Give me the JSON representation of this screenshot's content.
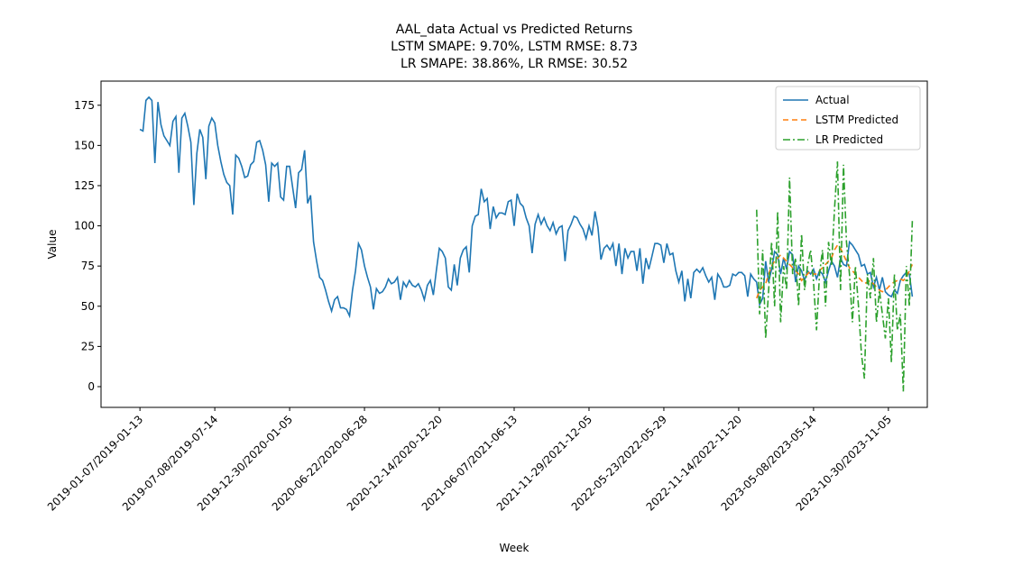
{
  "chart_data": {
    "type": "line",
    "title": [
      "AAL_data Actual vs Predicted Returns",
      "LSTM SMAPE: 9.70%, LSTM RMSE: 8.73",
      "LR SMAPE: 38.86%, LR RMSE: 30.52"
    ],
    "x_label": "Week",
    "y_label": "Value",
    "categories": [
      "2019-01-07/2019-01-13",
      null,
      null,
      null,
      null,
      null,
      null,
      null,
      null,
      null,
      null,
      null,
      null,
      null,
      null,
      null,
      null,
      null,
      null,
      null,
      null,
      null,
      null,
      null,
      null,
      "2019-07-08/2019-07-14",
      null,
      null,
      null,
      null,
      null,
      null,
      null,
      null,
      null,
      null,
      null,
      null,
      null,
      null,
      null,
      null,
      null,
      null,
      null,
      null,
      null,
      null,
      null,
      null,
      "2019-12-30/2020-01-05",
      null,
      null,
      null,
      null,
      null,
      null,
      null,
      null,
      null,
      null,
      null,
      null,
      null,
      null,
      null,
      null,
      null,
      null,
      null,
      null,
      null,
      null,
      null,
      null,
      "2020-06-22/2020-06-28",
      null,
      null,
      null,
      null,
      null,
      null,
      null,
      null,
      null,
      null,
      null,
      null,
      null,
      null,
      null,
      null,
      null,
      null,
      null,
      null,
      null,
      null,
      null,
      null,
      "2020-12-14/2020-12-20",
      null,
      null,
      null,
      null,
      null,
      null,
      null,
      null,
      null,
      null,
      null,
      null,
      null,
      null,
      null,
      null,
      null,
      null,
      null,
      null,
      null,
      null,
      null,
      null,
      "2021-06-07/2021-06-13",
      null,
      null,
      null,
      null,
      null,
      null,
      null,
      null,
      null,
      null,
      null,
      null,
      null,
      null,
      null,
      null,
      null,
      null,
      null,
      null,
      null,
      null,
      null,
      null,
      "2021-11-29/2021-12-05",
      null,
      null,
      null,
      null,
      null,
      null,
      null,
      null,
      null,
      null,
      null,
      null,
      null,
      null,
      null,
      null,
      null,
      null,
      null,
      null,
      null,
      null,
      null,
      null,
      "2022-05-23/2022-05-29",
      null,
      null,
      null,
      null,
      null,
      null,
      null,
      null,
      null,
      null,
      null,
      null,
      null,
      null,
      null,
      null,
      null,
      null,
      null,
      null,
      null,
      null,
      null,
      null,
      "2022-11-14/2022-11-20",
      null,
      null,
      null,
      null,
      null,
      null,
      null,
      null,
      null,
      null,
      null,
      null,
      null,
      null,
      null,
      null,
      null,
      null,
      null,
      null,
      null,
      null,
      null,
      null,
      "2023-05-08/2023-05-14",
      null,
      null,
      null,
      null,
      null,
      null,
      null,
      null,
      null,
      null,
      null,
      null,
      null,
      null,
      null,
      null,
      null,
      null,
      null,
      null,
      null,
      null,
      null,
      null,
      "2023-10-30/2023-11-05",
      null,
      null,
      null,
      null,
      null,
      null,
      null,
      null
    ],
    "series": [
      {
        "name": "Actual",
        "color": "#1f77b4",
        "dash": "none",
        "values": [
          160,
          159,
          178,
          180,
          178,
          139,
          177,
          163,
          156,
          153,
          150,
          165,
          168,
          133,
          167,
          170,
          162,
          152,
          113,
          145,
          160,
          155,
          129,
          162,
          167,
          164,
          150,
          140,
          132,
          127,
          125,
          107,
          144,
          142,
          137,
          130,
          131,
          138,
          140,
          152,
          153,
          147,
          138,
          115,
          139,
          137,
          139,
          118,
          116,
          137,
          137,
          124,
          111,
          133,
          135,
          147,
          114,
          119,
          90,
          78,
          68,
          66,
          60,
          53,
          47,
          54,
          56,
          49,
          49,
          48,
          44,
          60,
          72,
          89,
          85,
          75,
          68,
          62,
          48,
          61,
          58,
          59,
          62,
          67,
          64,
          65,
          68,
          54,
          65,
          62,
          66,
          63,
          62,
          64,
          60,
          54,
          63,
          66,
          57,
          72,
          86,
          84,
          80,
          62,
          60,
          76,
          63,
          80,
          85,
          87,
          71,
          100,
          106,
          107,
          123,
          115,
          117,
          98,
          112,
          105,
          108,
          108,
          107,
          115,
          116,
          100,
          120,
          114,
          112,
          105,
          100,
          83,
          101,
          107,
          101,
          105,
          100,
          97,
          102,
          95,
          99,
          100,
          78,
          97,
          101,
          106,
          105,
          101,
          98,
          92,
          100,
          94,
          109,
          99,
          79,
          86,
          88,
          85,
          89,
          75,
          89,
          70,
          86,
          80,
          84,
          84,
          72,
          86,
          64,
          80,
          73,
          81,
          89,
          89,
          88,
          77,
          89,
          82,
          83,
          72,
          65,
          72,
          53,
          67,
          55,
          71,
          73,
          71,
          74,
          69,
          65,
          68,
          54,
          70,
          67,
          62,
          62,
          63,
          70,
          69,
          71,
          71,
          69,
          56,
          70,
          67,
          65,
          51,
          55,
          78,
          65,
          73,
          84,
          82,
          70,
          80,
          73,
          84,
          82,
          65,
          75,
          72,
          66,
          72,
          70,
          73,
          67,
          72,
          70,
          65,
          72,
          78,
          75,
          68,
          80,
          76,
          75,
          90,
          88,
          85,
          82,
          75,
          76,
          70,
          71,
          62,
          68,
          60,
          68,
          59,
          57,
          56,
          60,
          58,
          66,
          69,
          71,
          70,
          56
        ]
      },
      {
        "name": "LSTM Predicted",
        "color": "#ff7f0e",
        "dash": "6 4",
        "values": [
          null,
          null,
          null,
          null,
          null,
          null,
          null,
          null,
          null,
          null,
          null,
          null,
          null,
          null,
          null,
          null,
          null,
          null,
          null,
          null,
          null,
          null,
          null,
          null,
          null,
          null,
          null,
          null,
          null,
          null,
          null,
          null,
          null,
          null,
          null,
          null,
          null,
          null,
          null,
          null,
          null,
          null,
          null,
          null,
          null,
          null,
          null,
          null,
          null,
          null,
          null,
          null,
          null,
          null,
          null,
          null,
          null,
          null,
          null,
          null,
          null,
          null,
          null,
          null,
          null,
          null,
          null,
          null,
          null,
          null,
          null,
          null,
          null,
          null,
          null,
          null,
          null,
          null,
          null,
          null,
          null,
          null,
          null,
          null,
          null,
          null,
          null,
          null,
          null,
          null,
          null,
          null,
          null,
          null,
          null,
          null,
          null,
          null,
          null,
          null,
          null,
          null,
          null,
          null,
          null,
          null,
          null,
          null,
          null,
          null,
          null,
          null,
          null,
          null,
          null,
          null,
          null,
          null,
          null,
          null,
          null,
          null,
          null,
          null,
          null,
          null,
          null,
          null,
          null,
          null,
          null,
          null,
          null,
          null,
          null,
          null,
          null,
          null,
          null,
          null,
          null,
          null,
          null,
          null,
          null,
          null,
          null,
          null,
          null,
          null,
          null,
          null,
          null,
          null,
          null,
          null,
          null,
          null,
          null,
          null,
          null,
          null,
          null,
          null,
          null,
          null,
          null,
          null,
          null,
          null,
          null,
          null,
          null,
          null,
          null,
          null,
          null,
          null,
          null,
          null,
          null,
          null,
          null,
          null,
          null,
          null,
          null,
          null,
          null,
          null,
          null,
          null,
          null,
          null,
          null,
          null,
          null,
          null,
          null,
          null,
          null,
          null,
          null,
          null,
          null,
          null,
          55,
          60,
          62,
          64,
          70,
          75,
          78,
          80,
          82,
          80,
          78,
          76,
          74,
          72,
          70,
          66,
          68,
          70,
          72,
          70,
          70,
          72,
          74,
          76,
          78,
          80,
          85,
          88,
          86,
          82,
          78,
          74,
          72,
          70,
          68,
          66,
          64,
          65,
          66,
          64,
          62,
          60,
          59,
          60,
          62,
          64,
          65,
          66,
          67,
          66,
          68,
          72,
          76
        ]
      },
      {
        "name": "LR Predicted",
        "color": "#2ca02c",
        "dash": "8 3 2 3",
        "values": [
          null,
          null,
          null,
          null,
          null,
          null,
          null,
          null,
          null,
          null,
          null,
          null,
          null,
          null,
          null,
          null,
          null,
          null,
          null,
          null,
          null,
          null,
          null,
          null,
          null,
          null,
          null,
          null,
          null,
          null,
          null,
          null,
          null,
          null,
          null,
          null,
          null,
          null,
          null,
          null,
          null,
          null,
          null,
          null,
          null,
          null,
          null,
          null,
          null,
          null,
          null,
          null,
          null,
          null,
          null,
          null,
          null,
          null,
          null,
          null,
          null,
          null,
          null,
          null,
          null,
          null,
          null,
          null,
          null,
          null,
          null,
          null,
          null,
          null,
          null,
          null,
          null,
          null,
          null,
          null,
          null,
          null,
          null,
          null,
          null,
          null,
          null,
          null,
          null,
          null,
          null,
          null,
          null,
          null,
          null,
          null,
          null,
          null,
          null,
          null,
          null,
          null,
          null,
          null,
          null,
          null,
          null,
          null,
          null,
          null,
          null,
          null,
          null,
          null,
          null,
          null,
          null,
          null,
          null,
          null,
          null,
          null,
          null,
          null,
          null,
          null,
          null,
          null,
          null,
          null,
          null,
          null,
          null,
          null,
          null,
          null,
          null,
          null,
          null,
          null,
          null,
          null,
          null,
          null,
          null,
          null,
          null,
          null,
          null,
          null,
          null,
          null,
          null,
          null,
          null,
          null,
          null,
          null,
          null,
          null,
          null,
          null,
          null,
          null,
          null,
          null,
          null,
          null,
          null,
          null,
          null,
          null,
          null,
          null,
          null,
          null,
          null,
          null,
          null,
          null,
          null,
          null,
          null,
          null,
          null,
          null,
          null,
          null,
          null,
          null,
          null,
          null,
          null,
          null,
          null,
          null,
          null,
          null,
          null,
          null,
          null,
          null,
          null,
          null,
          null,
          null,
          110,
          45,
          85,
          30,
          60,
          90,
          50,
          109,
          40,
          75,
          60,
          130,
          70,
          80,
          50,
          95,
          60,
          75,
          85,
          65,
          35,
          70,
          85,
          50,
          90,
          75,
          110,
          140,
          60,
          138,
          90,
          70,
          40,
          75,
          50,
          20,
          5,
          70,
          55,
          80,
          40,
          60,
          45,
          30,
          55,
          15,
          70,
          35,
          45,
          -3,
          75,
          50,
          103
        ]
      }
    ],
    "ylim": [
      -12.9,
      190
    ],
    "yticks": [
      0,
      25,
      50,
      75,
      100,
      125,
      150,
      175
    ],
    "xlim": [
      -13,
      263
    ],
    "legend": "upper right",
    "grid": false
  }
}
